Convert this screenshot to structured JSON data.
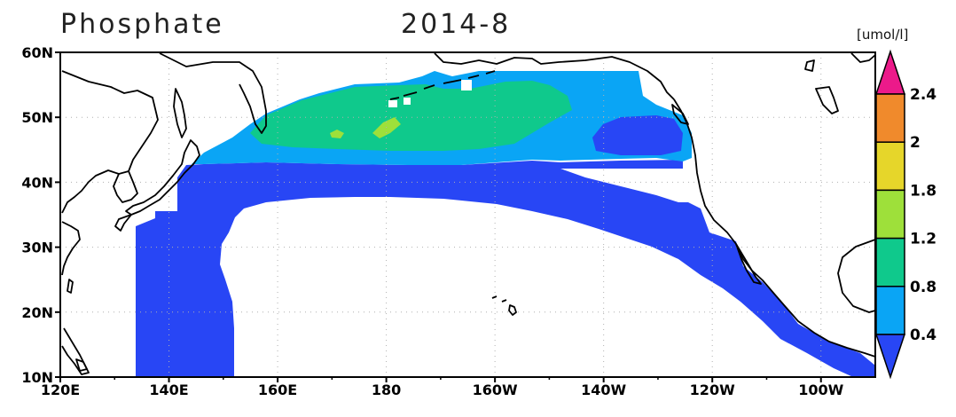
{
  "title": {
    "variable": "Phosphate",
    "date": "2014-8"
  },
  "colorbar": {
    "units": "[umol/l]",
    "labels": [
      "0.4",
      "0.8",
      "1.2",
      "1.8",
      "2",
      "2.4"
    ],
    "colors": [
      "#2846f5",
      "#0aa5f5",
      "#0fc98c",
      "#9ee03a",
      "#e6d62a",
      "#f08a2c",
      "#ec1a8a"
    ]
  },
  "map": {
    "lat_range": [
      10,
      60
    ],
    "lon_range": [
      120,
      270
    ],
    "lat_ticks": [
      {
        "value": 10,
        "label": "10N"
      },
      {
        "value": 20,
        "label": "20N"
      },
      {
        "value": 30,
        "label": "30N"
      },
      {
        "value": 40,
        "label": "40N"
      },
      {
        "value": 50,
        "label": "50N"
      },
      {
        "value": 60,
        "label": "60N"
      }
    ],
    "lon_ticks": [
      {
        "value": 120,
        "label": "120E"
      },
      {
        "value": 140,
        "label": "140E"
      },
      {
        "value": 160,
        "label": "160E"
      },
      {
        "value": 180,
        "label": "180"
      },
      {
        "value": 200,
        "label": "160W"
      },
      {
        "value": 220,
        "label": "140W"
      },
      {
        "value": 240,
        "label": "120W"
      },
      {
        "value": 260,
        "label": "100W"
      }
    ],
    "grid": "dotted"
  }
}
